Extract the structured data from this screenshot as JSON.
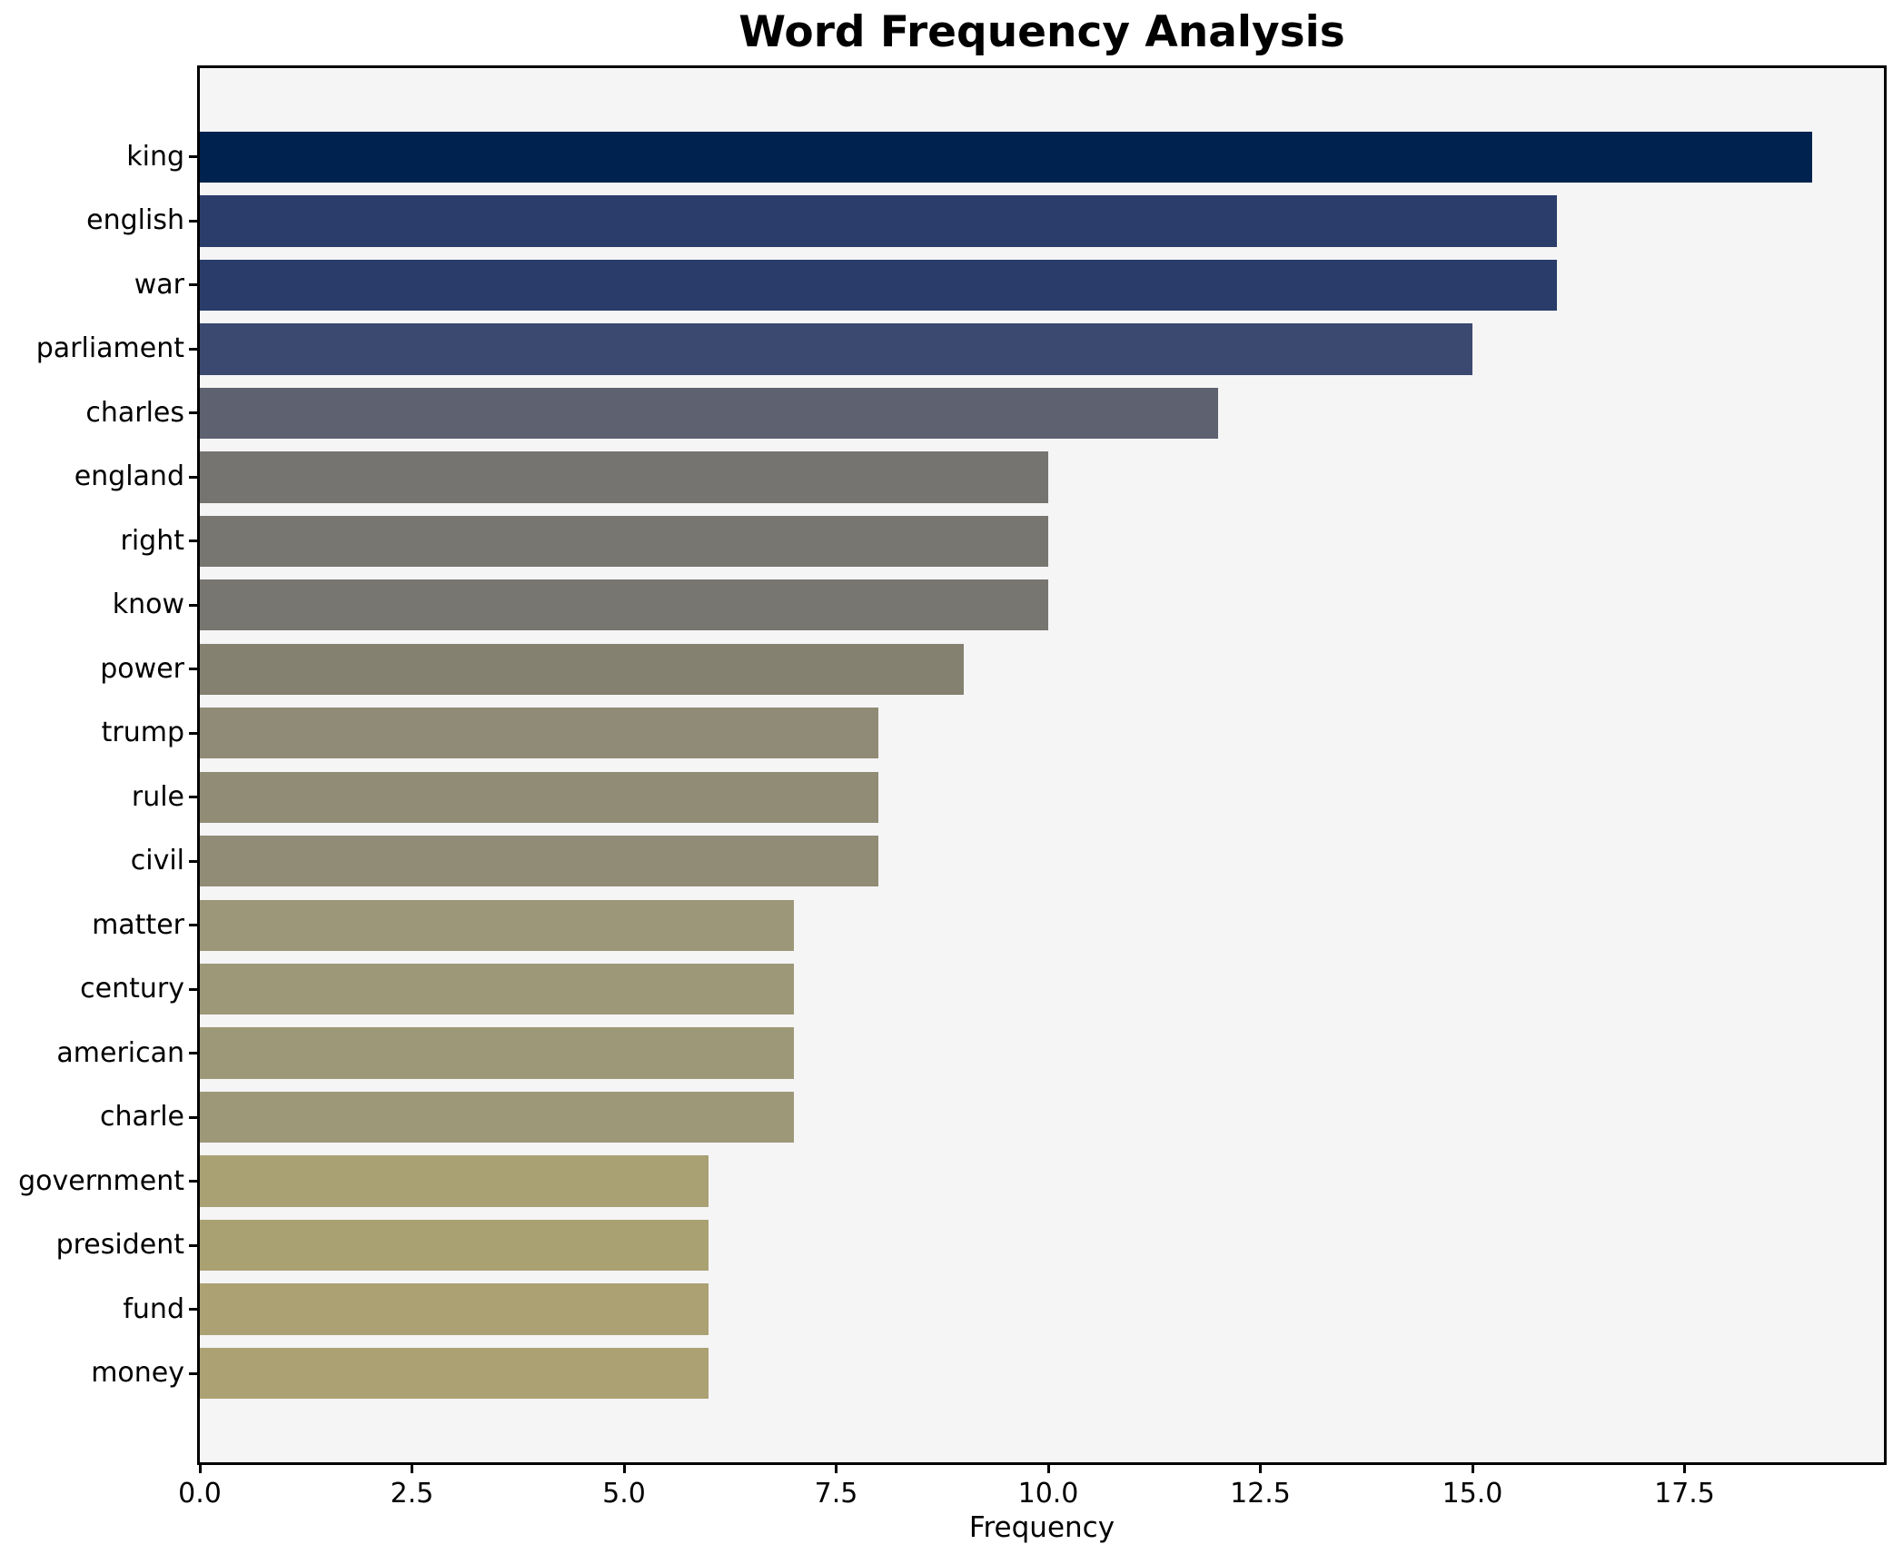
{
  "chart_data": {
    "type": "bar",
    "orientation": "horizontal",
    "title": "Word Frequency Analysis",
    "xlabel": "Frequency",
    "ylabel": "",
    "categories": [
      "king",
      "english",
      "war",
      "parliament",
      "charles",
      "england",
      "right",
      "know",
      "power",
      "trump",
      "rule",
      "civil",
      "matter",
      "century",
      "american",
      "charle",
      "government",
      "president",
      "fund",
      "money"
    ],
    "values": [
      19,
      16,
      16,
      15,
      12,
      10,
      10,
      10,
      9,
      8,
      8,
      8,
      7,
      7,
      7,
      7,
      6,
      6,
      6,
      6
    ],
    "bar_colors": [
      "#00224e",
      "#2b3e6b",
      "#2a3d6a",
      "#3b4970",
      "#5e6170",
      "#757470",
      "#777671",
      "#777671",
      "#848170",
      "#8f8b76",
      "#908c76",
      "#908c76",
      "#9c9778",
      "#9d9878",
      "#9d9878",
      "#9d9878",
      "#a9a074",
      "#aaa173",
      "#aba173",
      "#aba173"
    ],
    "xticks": [
      0,
      2.5,
      5,
      7.5,
      10,
      12.5,
      15,
      17.5
    ],
    "xtick_labels": [
      "0.0",
      "2.5",
      "5.0",
      "7.5",
      "10.0",
      "12.5",
      "15.0",
      "17.5"
    ],
    "xlim": [
      0,
      19.85
    ],
    "grid": false,
    "legend": false,
    "plot_background": "#f5f5f6",
    "figure_background": "#ffffff",
    "spine_color": "#000000",
    "bar_height_fraction": 0.8,
    "y_margin_units": 1.39
  }
}
